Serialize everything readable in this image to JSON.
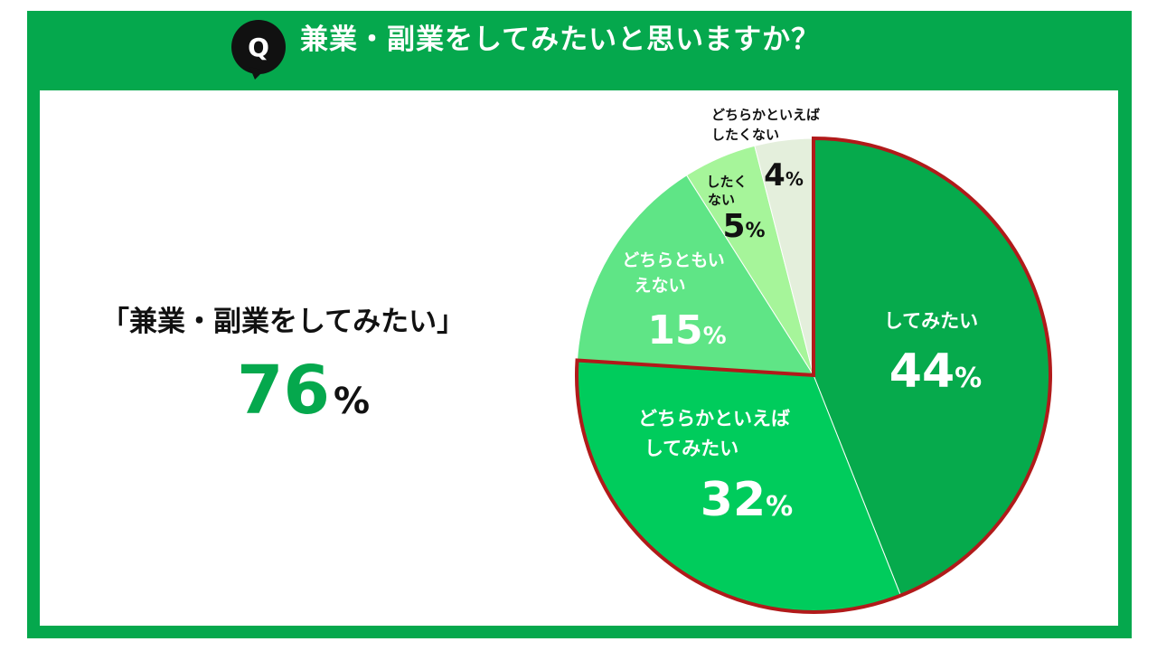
{
  "question": {
    "badge": "Q",
    "title": "兼業・副業をしてみたいと思いますか？"
  },
  "summary": {
    "label": "「兼業・副業をしてみたい」",
    "value": "76",
    "unit": "%"
  },
  "chart_data": {
    "type": "pie",
    "title": "兼業・副業をしてみたいと思いますか？",
    "unit": "%",
    "start": "12 o'clock, clockwise",
    "slices": [
      {
        "label": "してみたい",
        "value": 44,
        "color": "#06aa4c",
        "text_color": "#ffffff",
        "highlight": true
      },
      {
        "label": "どちらかといえばしてみたい",
        "value": 32,
        "color": "#00cc5c",
        "text_color": "#ffffff",
        "highlight": true
      },
      {
        "label": "どちらともいえない",
        "value": 15,
        "color": "#5fe586",
        "text_color": "#ffffff",
        "highlight": false
      },
      {
        "label": "したくない",
        "value": 5,
        "color": "#a6f59a",
        "text_color": "#111111",
        "highlight": false
      },
      {
        "label": "どちらかといえばしたくない",
        "value": 4,
        "color": "#e4efdc",
        "text_color": "#111111",
        "highlight": false
      }
    ],
    "highlight_outline_color": "#b11a1a"
  }
}
